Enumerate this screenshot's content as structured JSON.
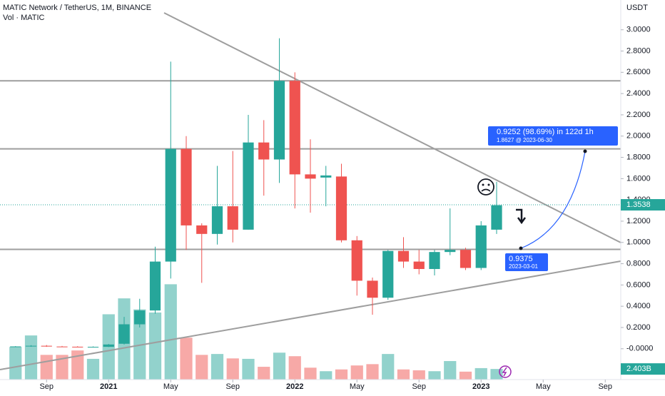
{
  "chart_data": {
    "type": "candlestick",
    "title": "MATIC Network / TetherUS, 1M, BINANCE",
    "subtitle": "Vol · MATIC",
    "y_axis_label": "USDT",
    "x": [
      "2020-07",
      "2020-08",
      "2020-09",
      "2020-10",
      "2020-11",
      "2020-12",
      "2021-01",
      "2021-02",
      "2021-03",
      "2021-04",
      "2021-05",
      "2021-06",
      "2021-07",
      "2021-08",
      "2021-09",
      "2021-10",
      "2021-11",
      "2021-12",
      "2022-01",
      "2022-02",
      "2022-03",
      "2022-04",
      "2022-05",
      "2022-06",
      "2022-07",
      "2022-08",
      "2022-09",
      "2022-10",
      "2022-11",
      "2022-12",
      "2023-01",
      "2023-02"
    ],
    "open": [
      0.017,
      0.022,
      0.028,
      0.021,
      0.019,
      0.018,
      0.018,
      0.047,
      0.23,
      0.36,
      0.82,
      1.88,
      1.16,
      1.08,
      1.34,
      1.12,
      1.94,
      1.78,
      2.52,
      1.64,
      1.61,
      1.62,
      1.02,
      0.64,
      0.48,
      0.92,
      0.82,
      0.75,
      0.91,
      0.93,
      0.76,
      1.12
    ],
    "high": [
      0.025,
      0.034,
      0.035,
      0.026,
      0.024,
      0.022,
      0.045,
      0.3,
      0.47,
      0.96,
      2.7,
      2.0,
      1.18,
      1.72,
      1.86,
      2.2,
      2.15,
      2.92,
      2.6,
      1.97,
      1.72,
      1.74,
      1.06,
      0.67,
      0.93,
      1.05,
      0.93,
      0.93,
      1.32,
      0.95,
      1.2,
      1.57
    ],
    "low": [
      0.015,
      0.019,
      0.018,
      0.017,
      0.016,
      0.016,
      0.016,
      0.04,
      0.2,
      0.33,
      0.66,
      0.93,
      0.62,
      0.98,
      1.0,
      1.12,
      1.44,
      1.56,
      1.32,
      1.28,
      1.34,
      1.0,
      0.5,
      0.32,
      0.46,
      0.76,
      0.7,
      0.69,
      0.88,
      0.74,
      0.74,
      1.08
    ],
    "close": [
      0.022,
      0.028,
      0.021,
      0.019,
      0.018,
      0.018,
      0.04,
      0.23,
      0.36,
      0.82,
      1.88,
      1.16,
      1.08,
      1.34,
      1.12,
      1.94,
      1.78,
      2.52,
      1.64,
      1.6,
      1.63,
      1.02,
      0.64,
      0.48,
      0.92,
      0.82,
      0.75,
      0.91,
      0.93,
      0.76,
      1.16,
      1.35
    ],
    "volume": [
      7.4,
      10.0,
      5.6,
      5.6,
      6.6,
      4.7,
      14.8,
      18.4,
      15.9,
      15.2,
      21.6,
      9.5,
      5.6,
      5.8,
      4.8,
      4.7,
      2.9,
      6.1,
      5.3,
      2.7,
      1.9,
      2.3,
      3.2,
      3.5,
      5.8,
      2.3,
      2.1,
      1.9,
      4.2,
      1.8,
      2.6,
      2.403
    ],
    "up_color": "#26a69a",
    "down_color": "#ef5350",
    "xlim": [
      "2020-06",
      "2023-10"
    ],
    "xticks": [
      {
        "value": "2020-09",
        "label": "Sep"
      },
      {
        "value": "2021-01",
        "label": "2021"
      },
      {
        "value": "2021-05",
        "label": "May"
      },
      {
        "value": "2021-09",
        "label": "Sep"
      },
      {
        "value": "2022-01",
        "label": "2022"
      },
      {
        "value": "2022-05",
        "label": "May"
      },
      {
        "value": "2022-09",
        "label": "Sep"
      },
      {
        "value": "2023-01",
        "label": "2023"
      },
      {
        "value": "2023-05",
        "label": "May"
      },
      {
        "value": "2023-09",
        "label": "Sep"
      }
    ],
    "ylim": [
      -0.29,
      3.28
    ],
    "yticks": [
      {
        "value": 0,
        "label": "-0.0000"
      },
      {
        "value": 0.2,
        "label": "0.2000"
      },
      {
        "value": 0.4,
        "label": "0.4000"
      },
      {
        "value": 0.6,
        "label": "0.6000"
      },
      {
        "value": 0.8,
        "label": "0.8000"
      },
      {
        "value": 1,
        "label": "1.0000"
      },
      {
        "value": 1.2,
        "label": "1.2000"
      },
      {
        "value": 1.4,
        "label": "1.4000"
      },
      {
        "value": 1.6,
        "label": "1.6000"
      },
      {
        "value": 1.8,
        "label": "1.8000"
      },
      {
        "value": 2,
        "label": "2.0000"
      },
      {
        "value": 2.2,
        "label": "2.2000"
      },
      {
        "value": 2.4,
        "label": "2.4000"
      },
      {
        "value": 2.6,
        "label": "2.6000"
      },
      {
        "value": 2.8,
        "label": "2.8000"
      },
      {
        "value": 3,
        "label": "3.0000"
      }
    ],
    "volume_lim": [
      0,
      86
    ],
    "levels": [
      2.52,
      1.88,
      0.935
    ],
    "last_price": {
      "value": 1.3538,
      "label": "1.3538"
    },
    "last_volume": {
      "value": 2.403,
      "label": "2.403B"
    },
    "annotations": {
      "projection": "0.9252 (98.69%) in 122d 1h",
      "target": "1.8627 @ 2023-06-30",
      "start_price": "0.9375",
      "start_date": "2023-03-01"
    }
  }
}
